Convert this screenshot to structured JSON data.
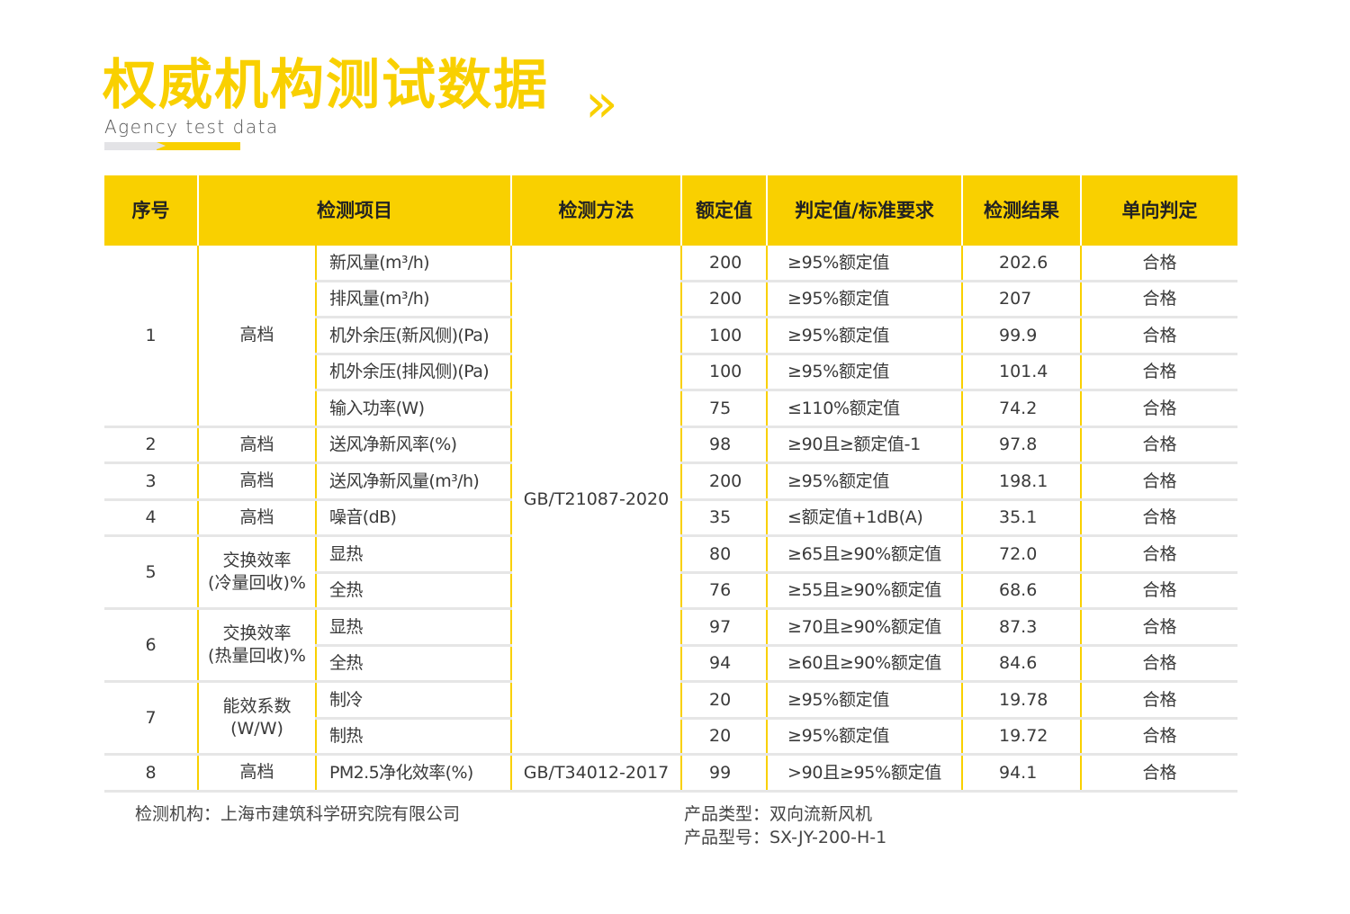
{
  "header": {
    "title": "权威机构测试数据",
    "chevron": "»",
    "subtitle": "Agency test data",
    "accent": "#f9d000"
  },
  "table": {
    "columns": [
      "序号",
      "检测项目",
      "检测方法",
      "额定值",
      "判定值/标准要求",
      "检测结果",
      "单向判定"
    ],
    "groups": [
      {
        "no": "1",
        "category": "高档",
        "rows": [
          {
            "item": "新风量(m³/h)",
            "rated": "200",
            "req": "≥95%额定值",
            "result": "202.6",
            "verdict": "合格"
          },
          {
            "item": "排风量(m³/h)",
            "rated": "200",
            "req": "≥95%额定值",
            "result": "207",
            "verdict": "合格"
          },
          {
            "item": "机外余压(新风侧)(Pa)",
            "rated": "100",
            "req": "≥95%额定值",
            "result": "99.9",
            "verdict": "合格"
          },
          {
            "item": "机外余压(排风侧)(Pa)",
            "rated": "100",
            "req": "≥95%额定值",
            "result": "101.4",
            "verdict": "合格"
          },
          {
            "item": "输入功率(W)",
            "rated": "75",
            "req": "≤110%额定值",
            "result": "74.2",
            "verdict": "合格"
          }
        ]
      },
      {
        "no": "2",
        "category": "高档",
        "rows": [
          {
            "item": "送风净新风率(%)",
            "rated": "98",
            "req": "≥90且≥额定值-1",
            "result": "97.8",
            "verdict": "合格"
          }
        ]
      },
      {
        "no": "3",
        "category": "高档",
        "rows": [
          {
            "item": "送风净新风量(m³/h)",
            "rated": "200",
            "req": "≥95%额定值",
            "result": "198.1",
            "verdict": "合格"
          }
        ]
      },
      {
        "no": "4",
        "category": "高档",
        "rows": [
          {
            "item": "噪音(dB)",
            "rated": "35",
            "req": "≤额定值+1dB(A)",
            "result": "35.1",
            "verdict": "合格"
          }
        ]
      },
      {
        "no": "5",
        "category": "交换效率\n(冷量回收)%",
        "rows": [
          {
            "item": "显热",
            "rated": "80",
            "req": "≥65且≥90%额定值",
            "result": "72.0",
            "verdict": "合格"
          },
          {
            "item": "全热",
            "rated": "76",
            "req": "≥55且≥90%额定值",
            "result": "68.6",
            "verdict": "合格"
          }
        ]
      },
      {
        "no": "6",
        "category": "交换效率\n(热量回收)%",
        "rows": [
          {
            "item": "显热",
            "rated": "97",
            "req": "≥70且≥90%额定值",
            "result": "87.3",
            "verdict": "合格"
          },
          {
            "item": "全热",
            "rated": "94",
            "req": "≥60且≥90%额定值",
            "result": "84.6",
            "verdict": "合格"
          }
        ]
      },
      {
        "no": "7",
        "category": "能效系数\n(W/W)",
        "rows": [
          {
            "item": "制冷",
            "rated": "20",
            "req": "≥95%额定值",
            "result": "19.78",
            "verdict": "合格"
          },
          {
            "item": "制热",
            "rated": "20",
            "req": "≥95%额定值",
            "result": "19.72",
            "verdict": "合格"
          }
        ]
      },
      {
        "no": "8",
        "category": "高档",
        "rows": [
          {
            "item": "PM2.5净化效率(%)",
            "rated": "99",
            "req": ">90且≥95%额定值",
            "result": "94.1",
            "verdict": "合格"
          }
        ]
      }
    ],
    "methods": [
      {
        "label": "GB/T21087-2020",
        "span_groups": 7
      },
      {
        "label": "GB/T34012-2017",
        "span_groups": 1
      }
    ]
  },
  "footer": {
    "agency": "检测机构：上海市建筑科学研究院有限公司",
    "product_type": "产品类型：双向流新风机",
    "product_model": "产品型号：SX-JY-200-H-1"
  }
}
